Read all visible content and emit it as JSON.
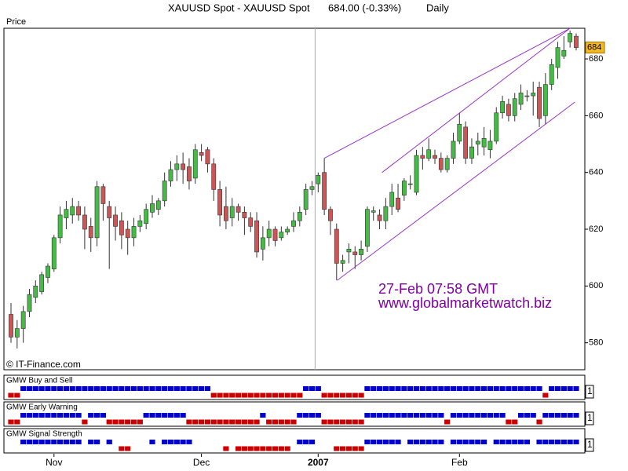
{
  "chart_data": [
    {
      "type": "candlestick",
      "title": "XAUUSD Spot - XAUUSD Spot",
      "quote": "684.00 (-0.33%)",
      "period": "Daily",
      "y_label": "Price",
      "source": "© IT-Finance.com",
      "last_label": "684",
      "annotations": [
        "27-Feb 07:58 GMT",
        "www.globalmarketwatch.biz"
      ],
      "annotation_color": "#8000a0",
      "categories": [
        null,
        null,
        null,
        null,
        null,
        null,
        null,
        "Nov",
        null,
        null,
        null,
        null,
        null,
        null,
        null,
        null,
        null,
        null,
        null,
        null,
        null,
        null,
        null,
        null,
        null,
        null,
        null,
        null,
        null,
        null,
        null,
        "Dec",
        null,
        null,
        null,
        null,
        null,
        null,
        null,
        null,
        null,
        null,
        null,
        null,
        null,
        null,
        null,
        null,
        null,
        null,
        "2007",
        null,
        null,
        null,
        null,
        null,
        null,
        null,
        null,
        null,
        null,
        null,
        null,
        null,
        null,
        null,
        null,
        null,
        null,
        null,
        null,
        null,
        null,
        "Feb",
        null,
        null,
        null,
        null,
        null,
        null,
        null,
        null,
        null,
        null,
        null,
        null,
        null,
        null,
        null,
        null,
        null,
        null,
        null
      ],
      "open": [
        590,
        582,
        585,
        591,
        596,
        598,
        603,
        606,
        617,
        624,
        625,
        628,
        625,
        621,
        617,
        635,
        628,
        625,
        623,
        620,
        617,
        621,
        622,
        626,
        627,
        630,
        637,
        641,
        643,
        642,
        638,
        647,
        648,
        643,
        634,
        628,
        624,
        628,
        626,
        624,
        623,
        613,
        617,
        620,
        617,
        619,
        621,
        623,
        627,
        634,
        636,
        640,
        627,
        620,
        608,
        612,
        612,
        611,
        614,
        626,
        625,
        623,
        628,
        631,
        632,
        636,
        633,
        646,
        645,
        646,
        645,
        641,
        645,
        651,
        656,
        645,
        650,
        649,
        648,
        651,
        661,
        664,
        660,
        664,
        667,
        667,
        670,
        660,
        671,
        677,
        681,
        686,
        688
      ],
      "high": [
        594,
        588,
        593,
        599,
        602,
        605,
        608,
        618,
        628,
        630,
        631,
        630,
        628,
        624,
        637,
        636,
        630,
        628,
        626,
        623,
        624,
        625,
        629,
        632,
        631,
        640,
        644,
        646,
        647,
        645,
        650,
        650,
        649,
        645,
        637,
        635,
        631,
        629,
        628,
        626,
        626,
        621,
        623,
        621,
        621,
        621,
        626,
        628,
        636,
        637,
        640,
        645,
        628,
        622,
        611,
        615,
        614,
        616,
        628,
        628,
        627,
        631,
        636,
        636,
        638,
        639,
        648,
        649,
        652,
        648,
        647,
        646,
        654,
        661,
        658,
        652,
        654,
        656,
        655,
        663,
        667,
        666,
        668,
        671,
        669,
        672,
        672,
        675,
        680,
        686,
        688,
        690,
        689
      ],
      "low": [
        580,
        578,
        580,
        589,
        594,
        597,
        601,
        605,
        615,
        620,
        622,
        623,
        613,
        612,
        614,
        623,
        606,
        616,
        613,
        611,
        614,
        619,
        620,
        624,
        625,
        628,
        635,
        637,
        636,
        634,
        636,
        644,
        640,
        630,
        621,
        620,
        621,
        623,
        618,
        619,
        610,
        609,
        614,
        614,
        616,
        618,
        619,
        621,
        625,
        632,
        633,
        625,
        618,
        602,
        605,
        608,
        606,
        609,
        612,
        623,
        620,
        620,
        625,
        626,
        630,
        634,
        632,
        641,
        644,
        643,
        640,
        640,
        643,
        650,
        643,
        643,
        646,
        646,
        645,
        650,
        659,
        658,
        658,
        662,
        665,
        660,
        656,
        657,
        669,
        673,
        680,
        684,
        683
      ],
      "close": [
        582,
        585,
        591,
        597,
        600,
        604,
        607,
        617,
        625,
        627,
        628,
        625,
        620,
        617,
        635,
        629,
        624,
        621,
        618,
        617,
        621,
        623,
        627,
        629,
        630,
        637,
        641,
        643,
        641,
        637,
        648,
        646,
        643,
        634,
        625,
        623,
        628,
        626,
        624,
        621,
        612,
        617,
        620,
        616,
        619,
        620,
        623,
        626,
        634,
        635,
        639,
        627,
        623,
        608,
        609,
        613,
        611,
        613,
        627,
        626.5,
        623,
        628,
        633,
        627,
        637,
        636,
        646,
        645,
        648,
        645,
        641,
        645,
        651,
        657,
        645,
        649,
        651,
        652,
        651,
        661,
        665,
        660,
        666,
        668,
        667,
        668,
        659,
        671,
        678,
        684,
        683,
        689,
        684
      ],
      "up_color": "#44bb44",
      "down_color": "#cc5555",
      "ylim": [
        570.5,
        690.8
      ],
      "yticks": [
        580,
        600,
        620,
        640,
        660,
        680
      ],
      "trendline_color": "#9933cc",
      "trendlines": [
        {
          "x": [
            51,
            91.2
          ],
          "y": [
            645,
            691
          ]
        },
        {
          "x": [
            60.4,
            90.8
          ],
          "y": [
            640,
            690.5
          ]
        },
        {
          "x": [
            53.1,
            91.8
          ],
          "y": [
            602,
            664.8
          ]
        }
      ]
    },
    {
      "type": "signal",
      "title": "GMW Buy and Sell",
      "up_color": "#0000cc",
      "down_color": "#cc0000",
      "yticks": [
        1
      ],
      "values": [
        -1,
        -1,
        1,
        1,
        1,
        1,
        1,
        1,
        1,
        1,
        1,
        1,
        1,
        1,
        1,
        1,
        1,
        1,
        1,
        1,
        1,
        1,
        1,
        1,
        1,
        1,
        1,
        1,
        1,
        1,
        1,
        1,
        1,
        -1,
        -1,
        -1,
        -1,
        -1,
        -1,
        -1,
        -1,
        -1,
        -1,
        -1,
        -1,
        -1,
        -1,
        -1,
        1,
        1,
        1,
        -1,
        -1,
        -1,
        -1,
        -1,
        -1,
        -1,
        1,
        1,
        1,
        1,
        1,
        1,
        1,
        1,
        1,
        1,
        1,
        1,
        1,
        1,
        1,
        1,
        1,
        1,
        1,
        1,
        1,
        1,
        1,
        1,
        1,
        1,
        1,
        1,
        1,
        -1,
        1,
        1,
        1,
        1,
        1
      ]
    },
    {
      "type": "signal",
      "title": "GMW Early Warning",
      "up_color": "#0000cc",
      "down_color": "#cc0000",
      "yticks": [
        1
      ],
      "values": [
        -1,
        -1,
        1,
        1,
        1,
        1,
        1,
        1,
        1,
        1,
        1,
        1,
        -1,
        1,
        1,
        1,
        -1,
        -1,
        -1,
        -1,
        -1,
        -1,
        1,
        1,
        1,
        1,
        1,
        1,
        1,
        -1,
        -1,
        -1,
        -1,
        -1,
        -1,
        -1,
        -1,
        -1,
        -1,
        -1,
        -1,
        1,
        -1,
        -1,
        -1,
        -1,
        -1,
        1,
        1,
        1,
        1,
        -1,
        -1,
        -1,
        -1,
        -1,
        -1,
        -1,
        1,
        1,
        1,
        1,
        1,
        1,
        1,
        1,
        1,
        1,
        1,
        1,
        1,
        -1,
        1,
        1,
        1,
        1,
        1,
        1,
        1,
        1,
        1,
        -1,
        -1,
        1,
        1,
        1,
        -1,
        1,
        1,
        1,
        1,
        1,
        1
      ]
    },
    {
      "type": "signal",
      "title": "GMW Signal Strength",
      "up_color": "#0000cc",
      "down_color": "#cc0000",
      "yticks": [
        1
      ],
      "values": [
        0,
        0,
        1,
        1,
        1,
        1,
        1,
        1,
        1,
        1,
        1,
        1,
        0,
        1,
        1,
        0,
        1,
        0,
        -1,
        -1,
        0,
        0,
        0,
        1,
        0,
        1,
        1,
        1,
        1,
        1,
        0,
        0,
        0,
        0,
        0,
        -1,
        0,
        -1,
        -1,
        -1,
        -1,
        -1,
        -1,
        -1,
        -1,
        -1,
        0,
        1,
        1,
        1,
        0,
        0,
        0,
        -1,
        -1,
        -1,
        -1,
        -1,
        1,
        1,
        1,
        1,
        1,
        1,
        0,
        1,
        1,
        1,
        1,
        1,
        1,
        0,
        1,
        1,
        1,
        1,
        1,
        1,
        0,
        1,
        1,
        1,
        1,
        1,
        1,
        0,
        1,
        1,
        1,
        1,
        1,
        1,
        1
      ]
    }
  ]
}
